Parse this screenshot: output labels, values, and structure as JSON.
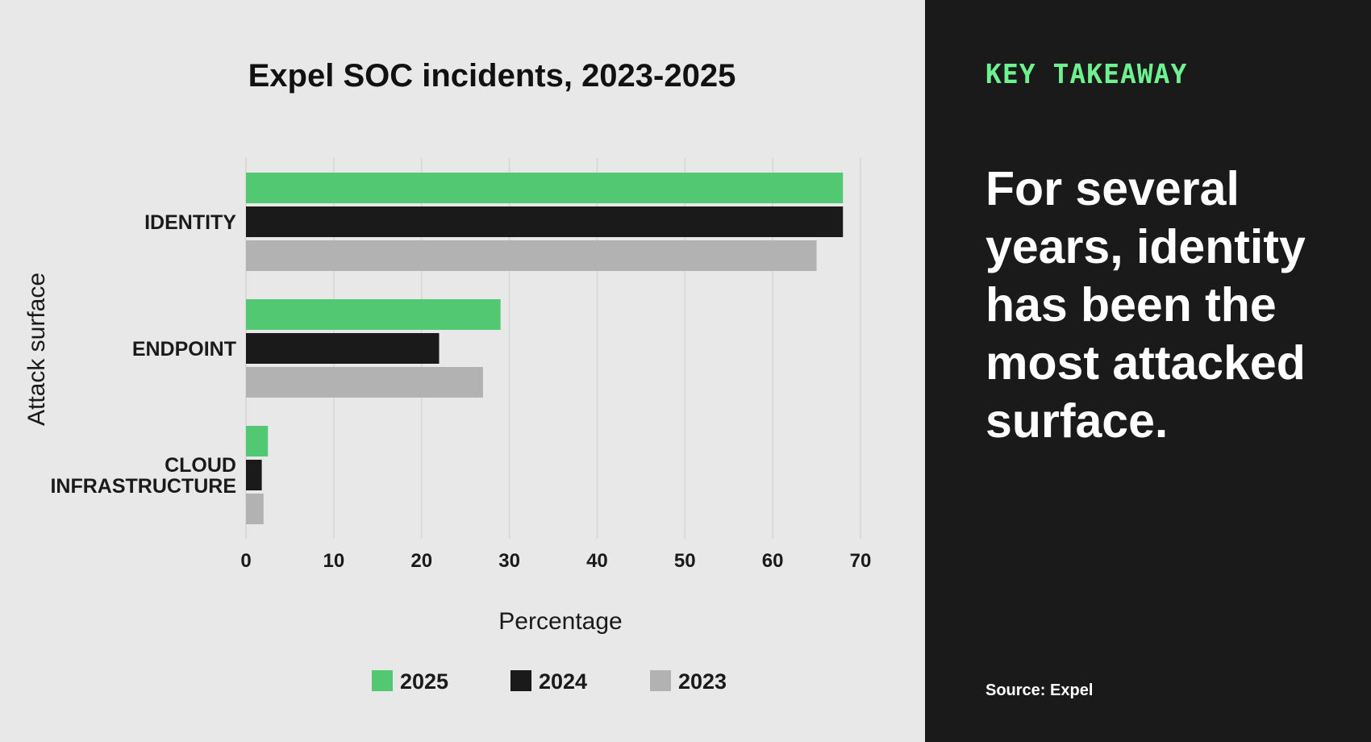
{
  "colors": {
    "2025": "#52c872",
    "2024": "#1a1a1a",
    "2023": "#b2b2b2",
    "accent": "#6ef28f"
  },
  "chart_data": {
    "type": "bar",
    "orientation": "horizontal",
    "title": "Expel SOC incidents, 2023-2025",
    "xlabel": "Percentage",
    "ylabel": "Attack surface",
    "categories": [
      "IDENTITY",
      "ENDPOINT",
      "CLOUD INFRASTRUCTURE"
    ],
    "category_lines": [
      [
        "IDENTITY"
      ],
      [
        "ENDPOINT"
      ],
      [
        "CLOUD",
        "INFRASTRUCTURE"
      ]
    ],
    "series": [
      {
        "name": "2025",
        "values": [
          68,
          29,
          2.5
        ]
      },
      {
        "name": "2024",
        "values": [
          68,
          22,
          1.8
        ]
      },
      {
        "name": "2023",
        "values": [
          65,
          27,
          2
        ]
      }
    ],
    "xlim": [
      0,
      70
    ],
    "xticks": [
      0,
      10,
      20,
      30,
      40,
      50,
      60,
      70
    ],
    "grid": true,
    "legend": "bottom"
  },
  "takeaway": {
    "label": "KEY TAKEAWAY",
    "text": "For several years, identity has been the most attacked surface.",
    "source": "Source: Expel"
  }
}
